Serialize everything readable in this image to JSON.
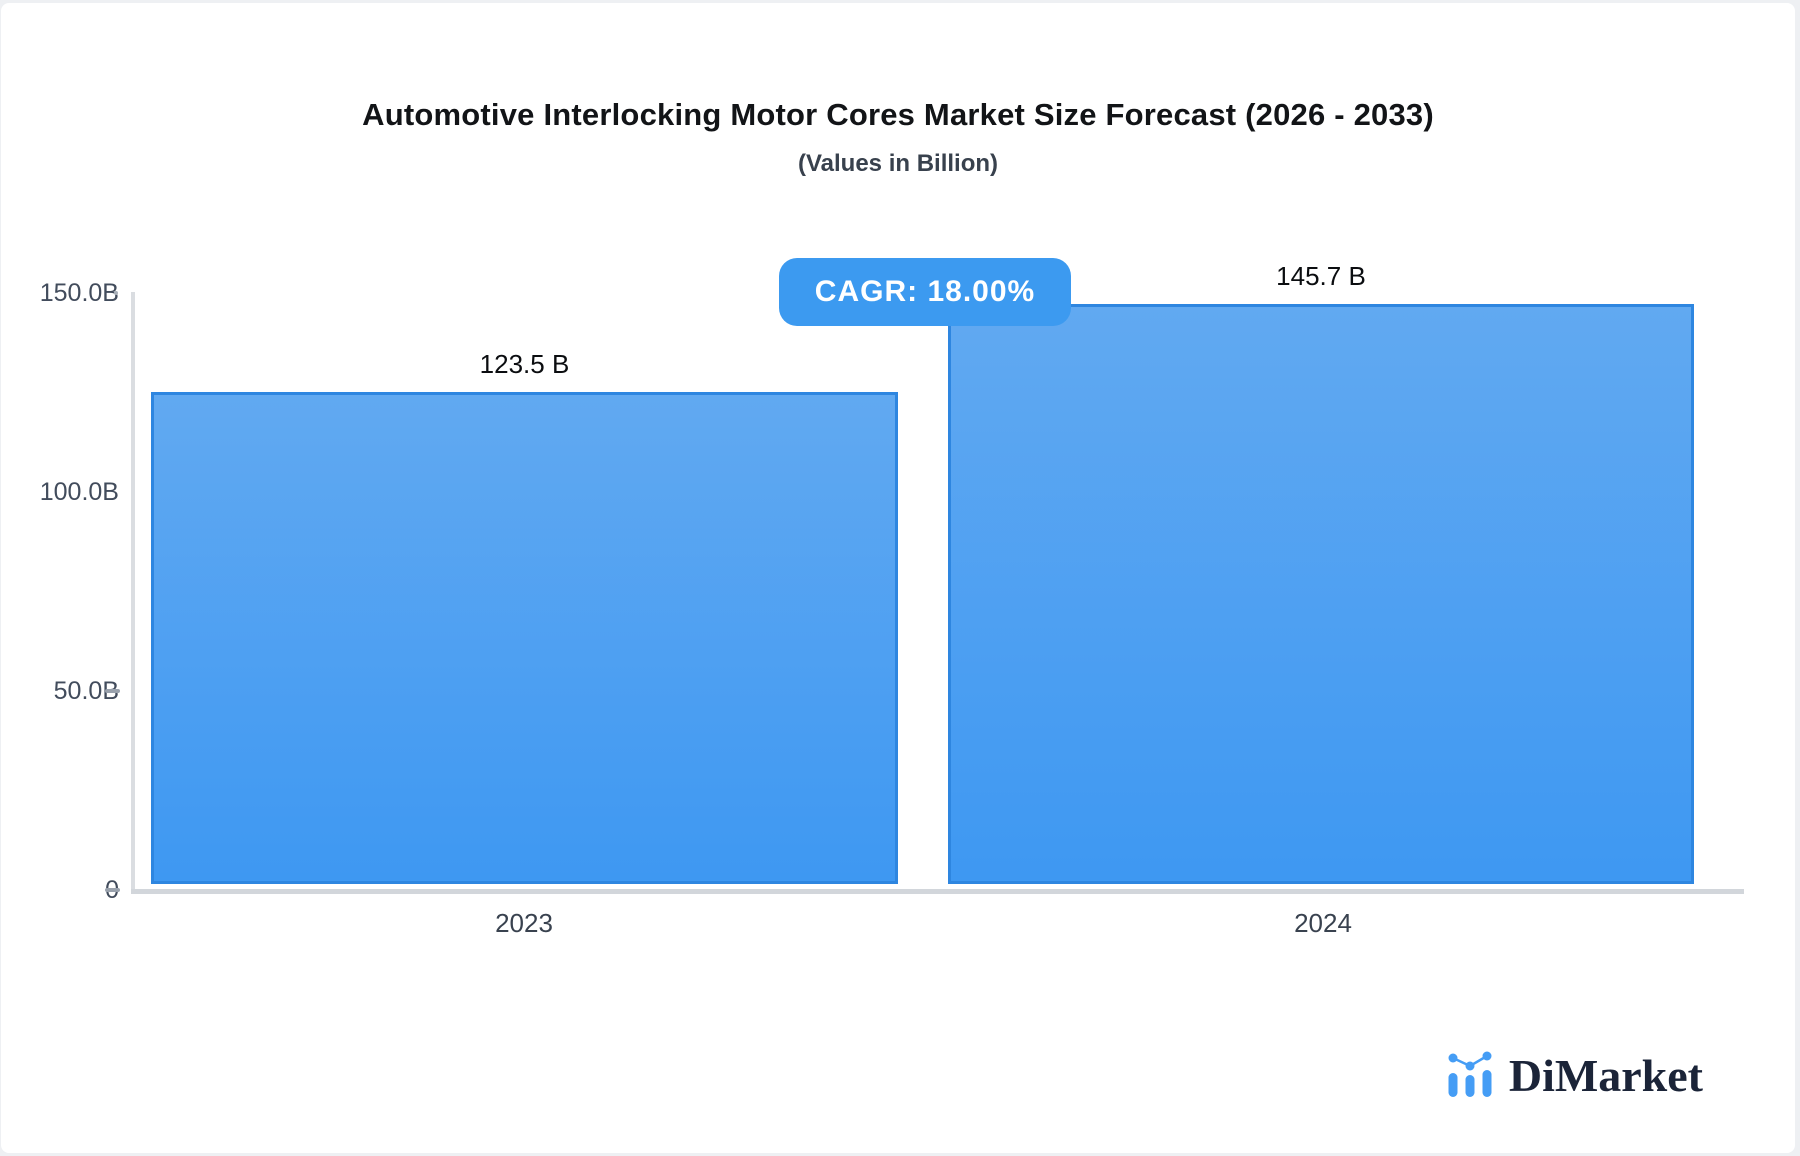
{
  "page": {
    "background": "#eef0f3",
    "card_background": "#ffffff"
  },
  "chart": {
    "title": "Automotive Interlocking Motor Cores Market Size Forecast (2026 - 2033)",
    "subtitle": "(Values in Billion)",
    "cagr_badge_label": "CAGR: 18.00%",
    "cagr_badge_color": "#3c9af0"
  },
  "chart_data": {
    "type": "bar",
    "categories": [
      "2023",
      "2024"
    ],
    "values": [
      123.5,
      145.7
    ],
    "value_labels": [
      "123.5 B",
      "145.7 B"
    ],
    "unit": "Billion",
    "cagr_percent": 18.0,
    "yticks": [
      "150.0B",
      "100.0B",
      "50.0B",
      "0"
    ],
    "ylim": [
      0,
      150
    ],
    "grid": "off",
    "legend": "none",
    "bar_color_top": "#61a9f1",
    "bar_color_bottom": "#3e98f2",
    "bar_border_color": "#2e86e0",
    "axis_color": "#dadde1"
  },
  "branding": {
    "name": "DiMarket",
    "icon": "bar-chart-logo-icon",
    "icon_color": "#459df5",
    "text_color": "#1b2438"
  }
}
